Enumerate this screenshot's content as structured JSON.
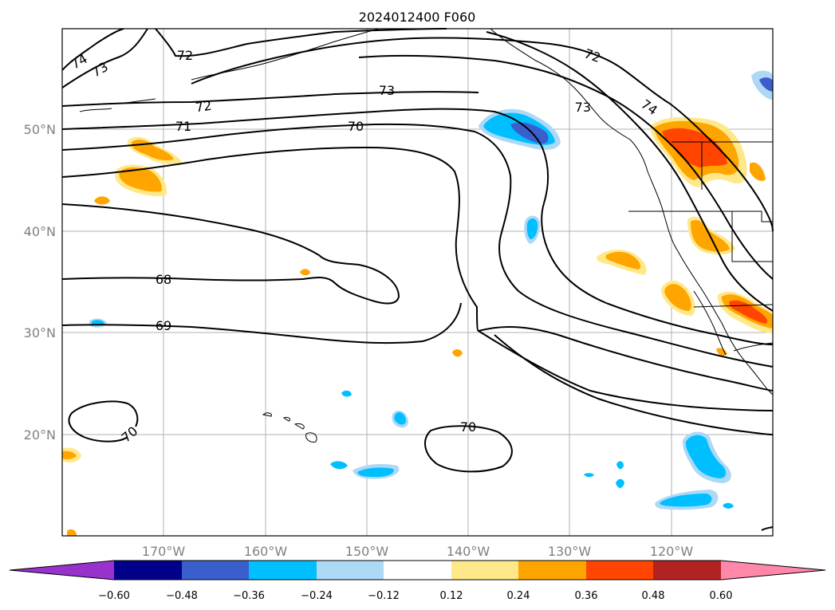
{
  "title": "2024012400 F060",
  "lat_labels": [
    "50°N",
    "40°N",
    "30°N",
    "20°N"
  ],
  "lon_labels": [
    "170°W",
    "160°W",
    "150°W",
    "140°W",
    "130°W",
    "120°W"
  ],
  "colorbar": {
    "tick_labels": [
      "−0.60",
      "−0.48",
      "−0.36",
      "−0.24",
      "−0.12",
      "0.12",
      "0.24",
      "0.36",
      "0.48",
      "0.60"
    ],
    "colors": {
      "below_min": "#9932cc",
      "navy": "#00008b",
      "royal": "#3a5fcd",
      "deepsky": "#00bfff",
      "lightblue": "#add8f6",
      "white": "#ffffff",
      "yellow": "#ffe88a",
      "orange": "#ffa500",
      "orangered": "#ff4500",
      "firebrick": "#b22222",
      "above_max": "#ff88aa"
    }
  },
  "contour_labels": [
    "74",
    "73",
    "72",
    "72",
    "73",
    "72",
    "71",
    "70",
    "73",
    "74",
    "68",
    "69",
    "70",
    "70"
  ]
}
